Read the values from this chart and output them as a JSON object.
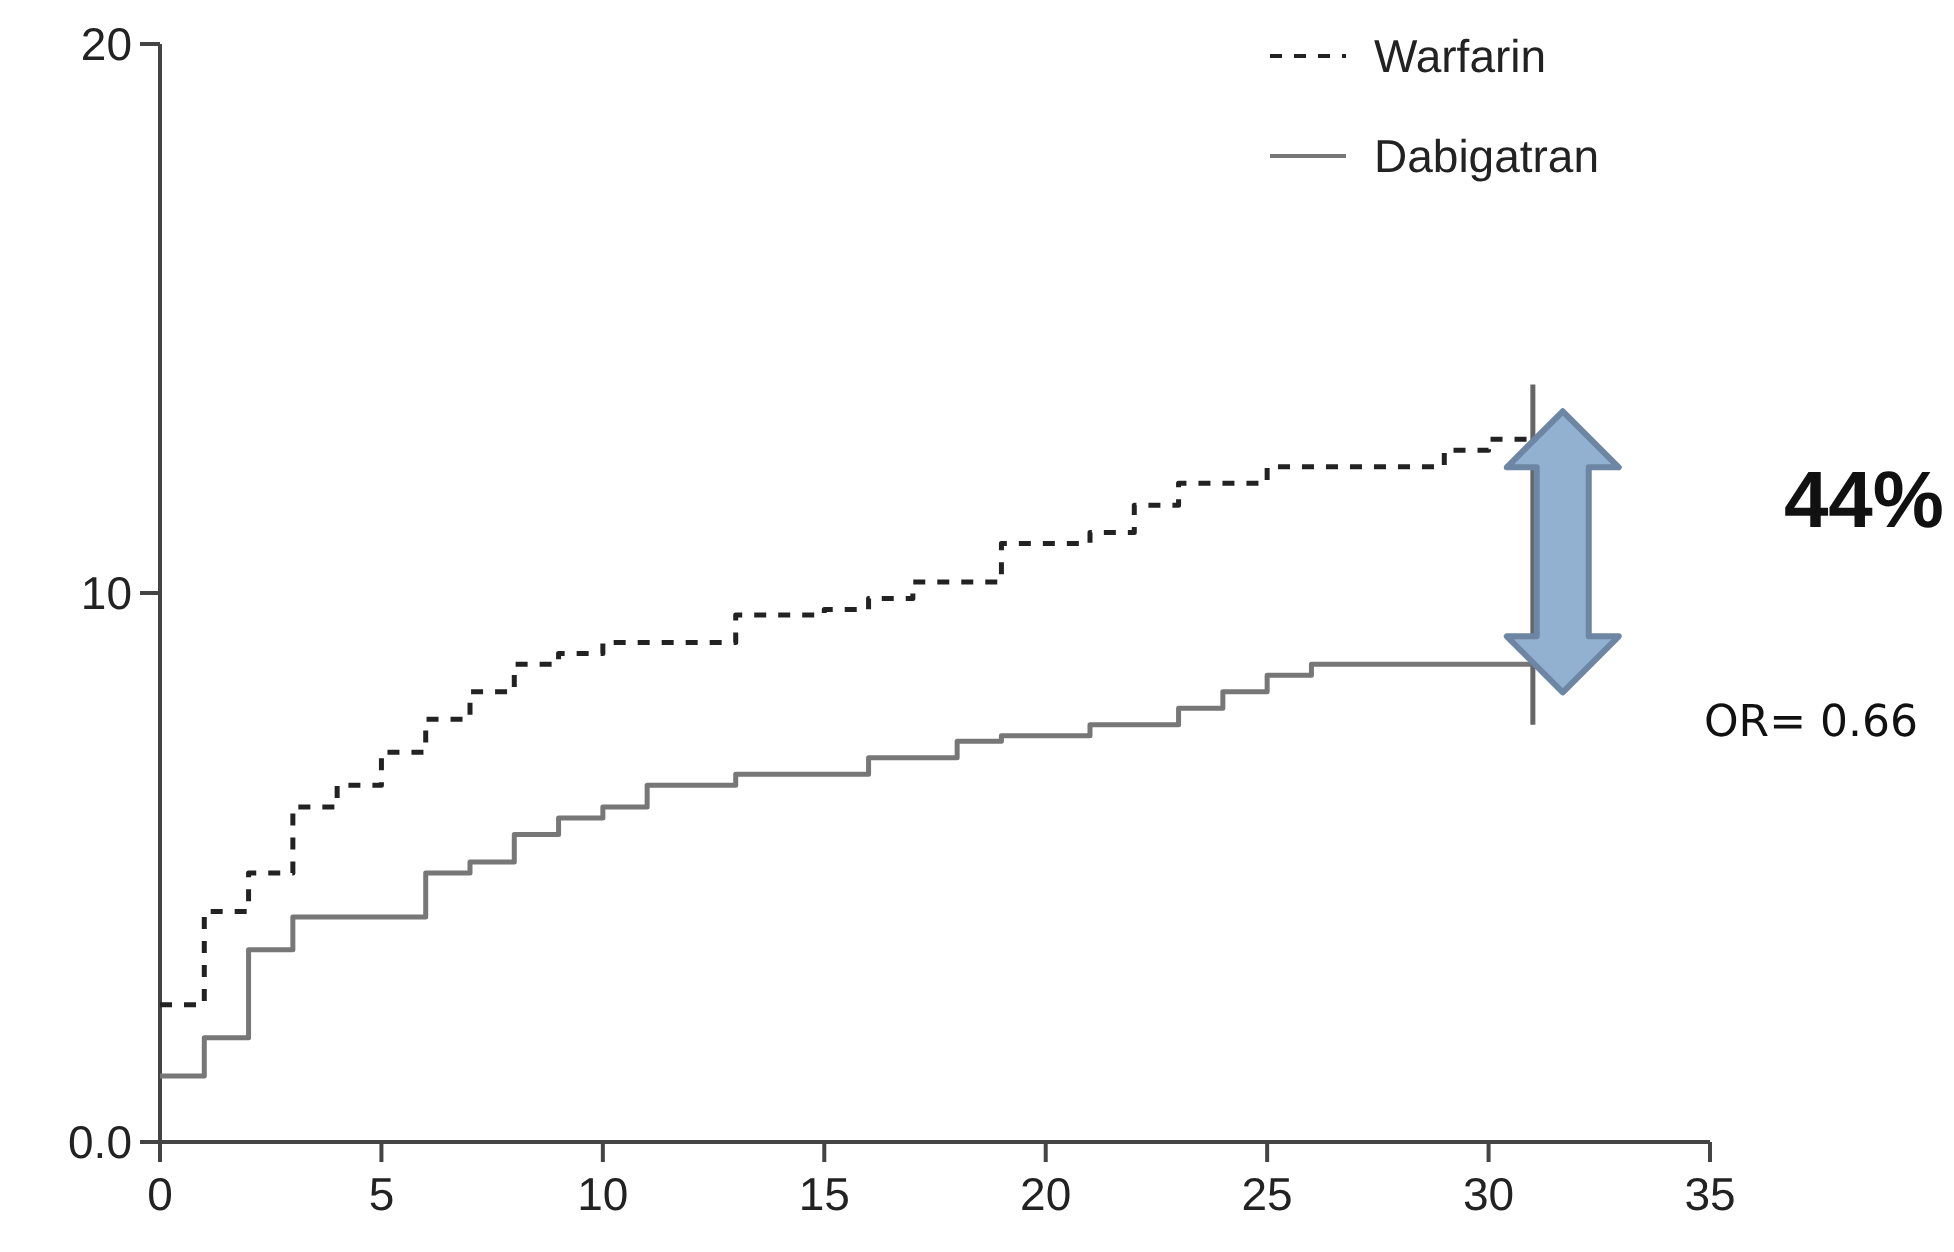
{
  "chart_data": {
    "type": "step",
    "xlim": [
      0,
      35
    ],
    "xticks": [
      0,
      5,
      10,
      15,
      20,
      25,
      30,
      35
    ],
    "ylim": [
      0,
      20
    ],
    "yticks": [
      {
        "value": 0,
        "label": "0.0"
      },
      10,
      20
    ],
    "legend": "top right",
    "grid": false,
    "series": [
      {
        "name": "Warfarin",
        "color": "#222222",
        "line_style": "dashed",
        "x": [
          0,
          1,
          2,
          3,
          4,
          5,
          6,
          7,
          8,
          9,
          10,
          13,
          15,
          16,
          17,
          19,
          21,
          22,
          23,
          25,
          29,
          30,
          31
        ],
        "values": [
          2.5,
          4.2,
          4.9,
          6.1,
          6.5,
          7.1,
          7.7,
          8.2,
          8.7,
          8.9,
          9.1,
          9.6,
          9.7,
          9.9,
          10.2,
          10.9,
          11.1,
          11.6,
          12.0,
          12.3,
          12.6,
          12.8,
          12.8
        ]
      },
      {
        "name": "Dabigatran",
        "color": "#777777",
        "line_style": "solid",
        "x": [
          0,
          1,
          2,
          3,
          6,
          7,
          8,
          9,
          10,
          11,
          13,
          16,
          18,
          19,
          21,
          23,
          24,
          25,
          26,
          31
        ],
        "values": [
          1.2,
          1.9,
          3.5,
          4.1,
          4.9,
          5.1,
          5.6,
          5.9,
          6.1,
          6.5,
          6.7,
          7.0,
          7.3,
          7.4,
          7.6,
          7.9,
          8.2,
          8.5,
          8.7,
          8.7
        ]
      },
      {
        "type": "line",
        "color": "#666666",
        "line_style": "solid",
        "x": [
          31,
          31
        ],
        "values": [
          13.8,
          7.6
        ]
      }
    ],
    "annotations": [
      "44%",
      "OR= 0.66"
    ]
  }
}
